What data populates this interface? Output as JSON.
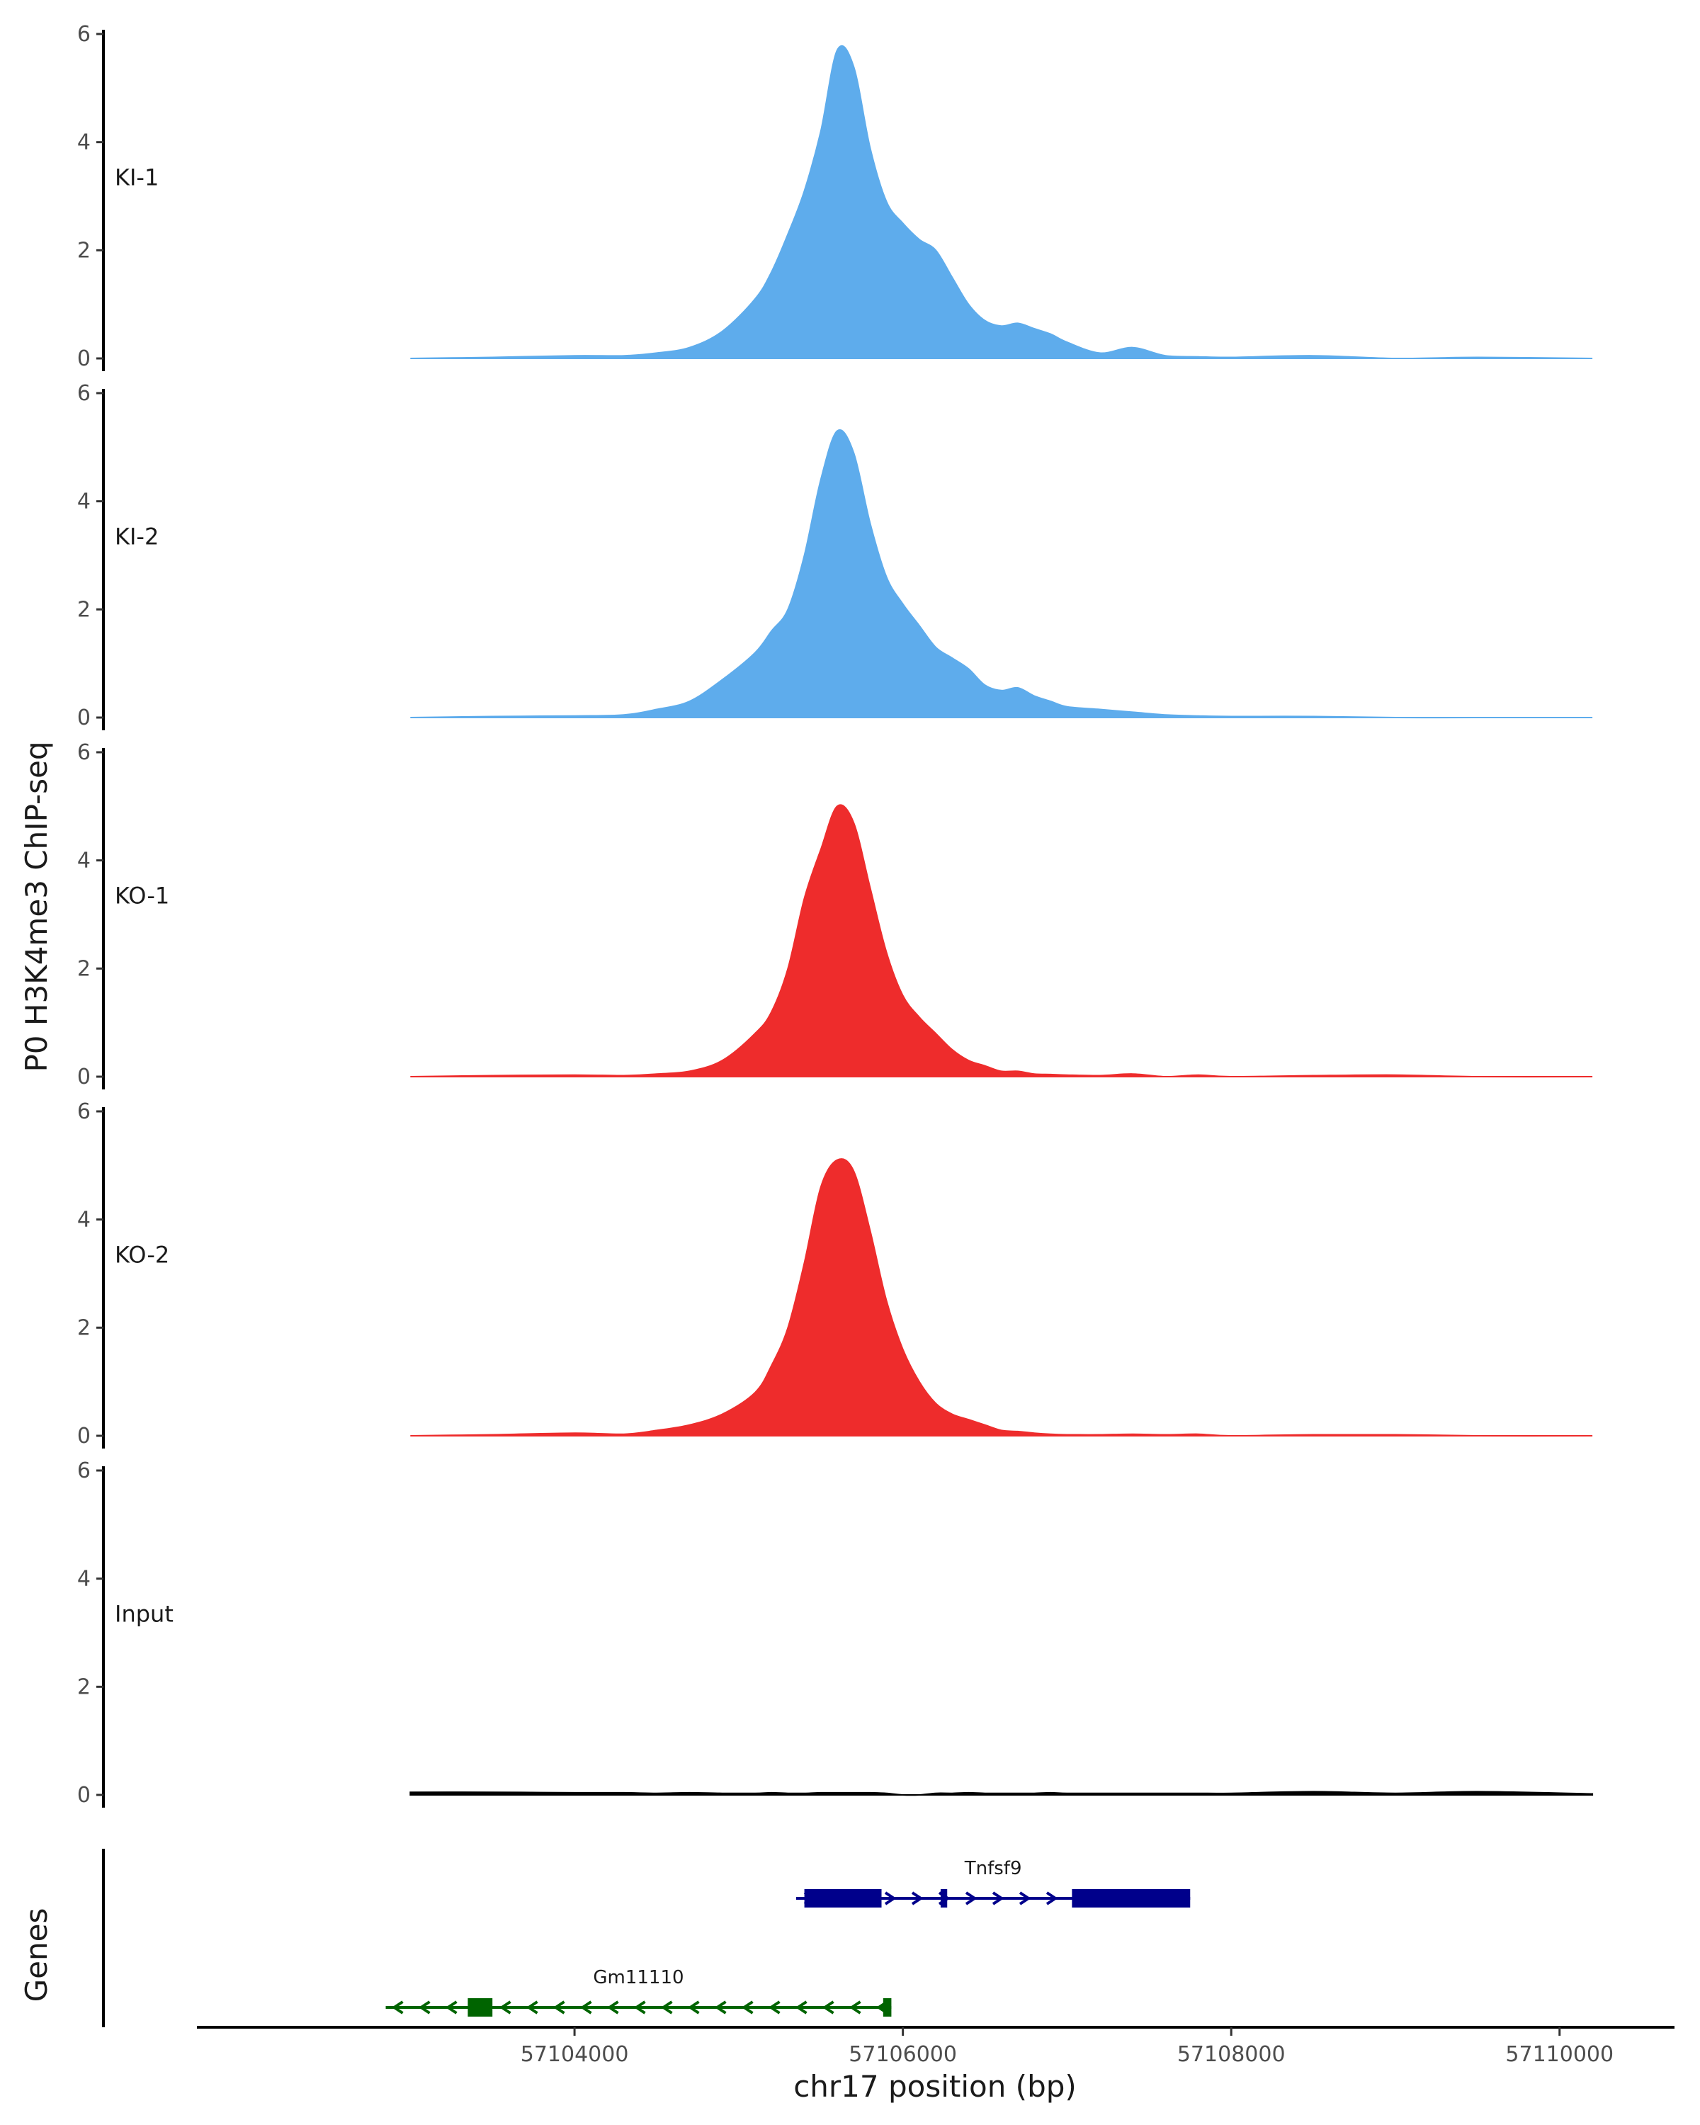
{
  "chart_data": {
    "type": "area",
    "ylabel": "P0 H3K4me3 ChIP-seq",
    "xlabel": "chr17 position (bp)",
    "xlim": [
      57101700,
      57110700
    ],
    "ylim": [
      0,
      6
    ],
    "y_ticks": [
      0,
      2,
      4,
      6
    ],
    "x_ticks": [
      57104000,
      57106000,
      57108000,
      57110000
    ],
    "x_tick_labels": [
      "57104000",
      "57106000",
      "57108000",
      "57110000"
    ],
    "x_positions": [
      57103000,
      57103500,
      57104000,
      57104300,
      57104500,
      57104700,
      57104900,
      57105100,
      57105200,
      57105300,
      57105400,
      57105500,
      57105600,
      57105700,
      57105800,
      57105900,
      57106000,
      57106100,
      57106200,
      57106300,
      57106400,
      57106500,
      57106600,
      57106700,
      57106800,
      57106900,
      57107000,
      57107200,
      57107400,
      57107600,
      57107800,
      57108000,
      57108500,
      57109000,
      57109500,
      57110200
    ],
    "tracks": [
      {
        "label": "KI-1",
        "color": "#5eacec",
        "values": [
          0.0,
          0.02,
          0.05,
          0.05,
          0.1,
          0.2,
          0.5,
          1.1,
          1.6,
          2.3,
          3.1,
          4.2,
          5.7,
          5.4,
          3.9,
          2.9,
          2.5,
          2.2,
          2.0,
          1.5,
          1.0,
          0.7,
          0.6,
          0.65,
          0.55,
          0.45,
          0.3,
          0.1,
          0.2,
          0.05,
          0.03,
          0.02,
          0.05,
          0.0,
          0.02,
          0.0
        ]
      },
      {
        "label": "KI-2",
        "color": "#5eacec",
        "values": [
          0.0,
          0.02,
          0.03,
          0.05,
          0.15,
          0.3,
          0.7,
          1.2,
          1.6,
          2.0,
          3.0,
          4.4,
          5.3,
          4.9,
          3.6,
          2.6,
          2.1,
          1.7,
          1.3,
          1.1,
          0.9,
          0.6,
          0.5,
          0.55,
          0.4,
          0.3,
          0.2,
          0.15,
          0.1,
          0.05,
          0.03,
          0.02,
          0.02,
          0.0,
          0.0,
          0.0
        ]
      },
      {
        "label": "KO-1",
        "color": "#ee2c2c",
        "values": [
          0.0,
          0.02,
          0.03,
          0.02,
          0.05,
          0.1,
          0.3,
          0.8,
          1.2,
          2.0,
          3.3,
          4.2,
          5.0,
          4.7,
          3.5,
          2.3,
          1.5,
          1.1,
          0.8,
          0.5,
          0.3,
          0.2,
          0.1,
          0.1,
          0.05,
          0.04,
          0.03,
          0.02,
          0.05,
          0.0,
          0.03,
          0.0,
          0.02,
          0.03,
          0.0,
          0.0
        ]
      },
      {
        "label": "KO-2",
        "color": "#ee2c2c",
        "values": [
          0.0,
          0.02,
          0.05,
          0.03,
          0.1,
          0.2,
          0.4,
          0.8,
          1.3,
          2.0,
          3.2,
          4.6,
          5.1,
          4.9,
          3.8,
          2.5,
          1.6,
          1.0,
          0.6,
          0.4,
          0.3,
          0.2,
          0.1,
          0.08,
          0.05,
          0.03,
          0.02,
          0.02,
          0.03,
          0.02,
          0.03,
          0.0,
          0.02,
          0.02,
          0.0,
          0.0
        ]
      },
      {
        "label": "Input",
        "color": "#000000",
        "values": [
          0.05,
          0.05,
          0.04,
          0.04,
          0.03,
          0.04,
          0.03,
          0.03,
          0.04,
          0.03,
          0.03,
          0.04,
          0.04,
          0.04,
          0.04,
          0.03,
          0.0,
          0.0,
          0.03,
          0.03,
          0.04,
          0.03,
          0.03,
          0.03,
          0.03,
          0.04,
          0.03,
          0.03,
          0.03,
          0.03,
          0.03,
          0.03,
          0.06,
          0.03,
          0.06,
          0.02
        ]
      }
    ],
    "genes_label": "Genes",
    "genes": [
      {
        "name": "Tnfsf9",
        "strand": "+",
        "color": "#00008b",
        "start": 57105350,
        "end": 57107750,
        "exons": [
          [
            57105400,
            57105870
          ],
          [
            57106230,
            57106270
          ],
          [
            57107030,
            57107750
          ]
        ]
      },
      {
        "name": "Gm11110",
        "strand": "-",
        "color": "#006400",
        "start": 57102850,
        "end": 57105930,
        "exons": [
          [
            57103350,
            57103500
          ],
          [
            57105880,
            57105930
          ]
        ]
      }
    ]
  }
}
